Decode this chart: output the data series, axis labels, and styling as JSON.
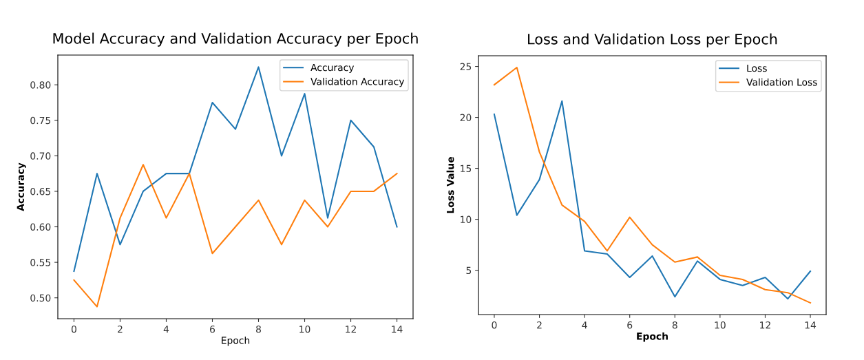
{
  "chart_data": [
    {
      "type": "line",
      "title": "Model Accuracy and Validation Accuracy per Epoch",
      "xlabel": "Epoch",
      "ylabel": "Accuracy",
      "x": [
        0,
        1,
        2,
        3,
        4,
        5,
        6,
        7,
        8,
        9,
        10,
        11,
        12,
        13,
        14
      ],
      "series": [
        {
          "name": "Accuracy",
          "color": "#1f77b4",
          "values": [
            0.5375,
            0.675,
            0.575,
            0.65,
            0.675,
            0.675,
            0.775,
            0.7375,
            0.825,
            0.7,
            0.7875,
            0.6125,
            0.75,
            0.7125,
            0.6
          ]
        },
        {
          "name": "Validation Accuracy",
          "color": "#ff7f0e",
          "values": [
            0.525,
            0.4875,
            0.6125,
            0.6875,
            0.6125,
            0.675,
            0.5625,
            0.6,
            0.6375,
            0.575,
            0.6375,
            0.6,
            0.65,
            0.65,
            0.675
          ]
        }
      ],
      "xlim": [
        -0.7,
        14.7
      ],
      "xticks": [
        0,
        2,
        4,
        6,
        8,
        10,
        12,
        14
      ],
      "ylim": [
        0.4706,
        0.8419
      ],
      "yticks": [
        {
          "value": 0.5,
          "label": "0.50"
        },
        {
          "value": 0.55,
          "label": "0.55"
        },
        {
          "value": 0.6,
          "label": "0.60"
        },
        {
          "value": 0.65,
          "label": "0.65"
        },
        {
          "value": 0.7,
          "label": "0.70"
        },
        {
          "value": 0.75,
          "label": "0.75"
        },
        {
          "value": 0.8,
          "label": "0.80"
        }
      ],
      "legend": "top right",
      "grid": false
    },
    {
      "type": "line",
      "title": "Loss and Validation Loss per Epoch",
      "xlabel": "Epoch",
      "ylabel": "Loss Value",
      "x": [
        0,
        1,
        2,
        3,
        4,
        5,
        6,
        7,
        8,
        9,
        10,
        11,
        12,
        13,
        14
      ],
      "series": [
        {
          "name": "Loss",
          "color": "#1f77b4",
          "values": [
            20.3,
            10.4,
            13.9,
            21.6,
            6.9,
            6.6,
            4.3,
            6.4,
            2.4,
            5.9,
            4.1,
            3.5,
            4.3,
            2.2,
            4.9
          ]
        },
        {
          "name": "Validation Loss",
          "color": "#ff7f0e",
          "values": [
            23.2,
            24.9,
            16.6,
            11.4,
            9.8,
            6.9,
            10.2,
            7.5,
            5.8,
            6.3,
            4.5,
            4.1,
            3.1,
            2.8,
            1.8
          ]
        }
      ],
      "xlim": [
        -0.7,
        14.7
      ],
      "xticks": [
        0,
        2,
        4,
        6,
        8,
        10,
        12,
        14
      ],
      "ylim": [
        0.65,
        26.05
      ],
      "yticks": [
        5,
        10,
        15,
        20,
        25
      ],
      "legend": "top right",
      "grid": false
    }
  ]
}
